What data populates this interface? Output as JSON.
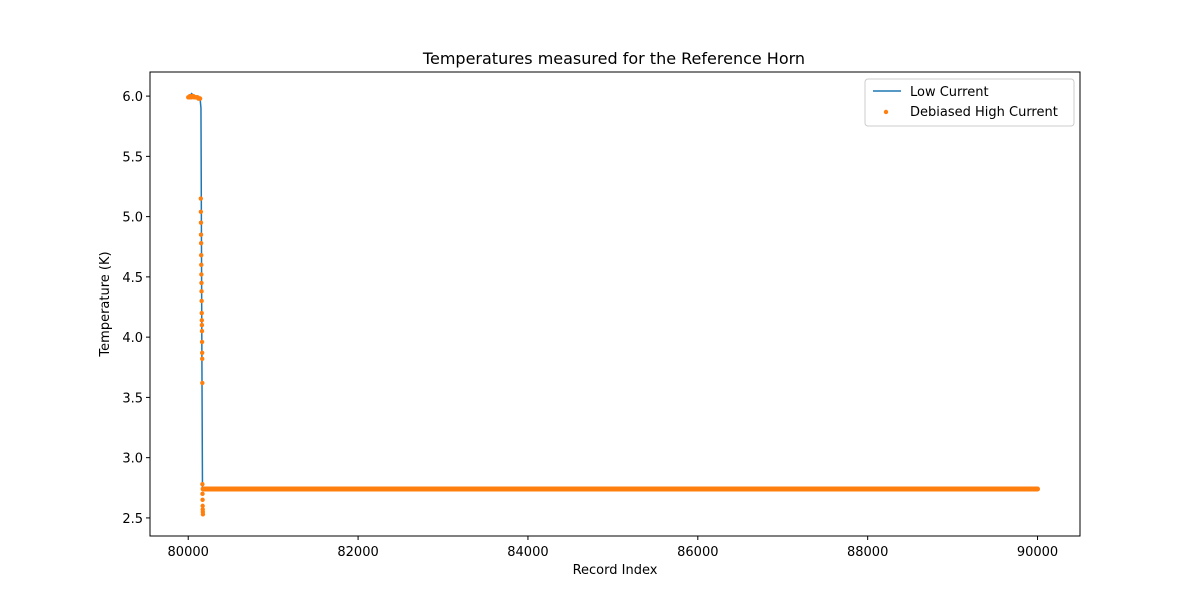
{
  "chart_data": {
    "type": "line",
    "title": "Temperatures measured for the Reference Horn",
    "xlabel": "Record Index",
    "ylabel": "Temperature (K)",
    "xlim": [
      79550,
      90500
    ],
    "ylim": [
      2.35,
      6.2
    ],
    "x_ticks": [
      80000,
      82000,
      84000,
      86000,
      88000,
      90000
    ],
    "x_tick_labels": [
      "80000",
      "82000",
      "84000",
      "86000",
      "88000",
      "90000"
    ],
    "y_ticks": [
      2.5,
      3.0,
      3.5,
      4.0,
      4.5,
      5.0,
      5.5,
      6.0
    ],
    "y_tick_labels": [
      "2.5",
      "3.0",
      "3.5",
      "4.0",
      "4.5",
      "5.0",
      "5.5",
      "6.0"
    ],
    "grid": false,
    "legend_position": "top-right",
    "series": [
      {
        "name": "Low Current",
        "kind": "line",
        "color": "#1f77b4",
        "x": [
          80000,
          80020,
          80040,
          80055,
          80070,
          80090,
          80110,
          80125,
          80140,
          80150,
          80155,
          80160,
          80165,
          80168,
          80172,
          80200,
          82000,
          84000,
          86000,
          88000,
          90000
        ],
        "y": [
          5.99,
          6.0,
          6.02,
          6.01,
          6.0,
          6.0,
          6.0,
          5.99,
          5.98,
          5.9,
          5.0,
          4.0,
          3.2,
          2.74,
          2.74,
          2.74,
          2.74,
          2.745,
          2.74,
          2.74,
          2.74
        ]
      },
      {
        "name": "Debiased High Current",
        "kind": "scatter",
        "color": "#ff7f0e",
        "x": [
          80000,
          80010,
          80020,
          80030,
          80040,
          80050,
          80060,
          80070,
          80080,
          80090,
          80100,
          80110,
          80120,
          80130,
          80140,
          80148,
          80149,
          80150,
          80151,
          80152,
          80153,
          80154,
          80155,
          80156,
          80157,
          80158,
          80159,
          80160,
          80161,
          80162,
          80163,
          80164,
          80165,
          80166,
          80167,
          80168,
          80169,
          80170,
          80171,
          80172,
          80173
        ],
        "y": [
          5.99,
          5.99,
          6.0,
          5.99,
          5.99,
          6.0,
          6.0,
          5.99,
          5.99,
          5.99,
          5.99,
          5.99,
          5.98,
          5.98,
          5.98,
          5.15,
          5.04,
          4.95,
          4.85,
          4.78,
          4.68,
          4.6,
          4.52,
          4.45,
          4.38,
          4.3,
          4.2,
          4.14,
          4.1,
          4.05,
          3.96,
          3.87,
          3.82,
          3.62,
          2.78,
          2.7,
          2.65,
          2.6,
          2.57,
          2.55,
          2.53
        ],
        "flat_segment": {
          "x_start": 80175,
          "x_end": 90000,
          "y": 2.74
        }
      }
    ]
  }
}
